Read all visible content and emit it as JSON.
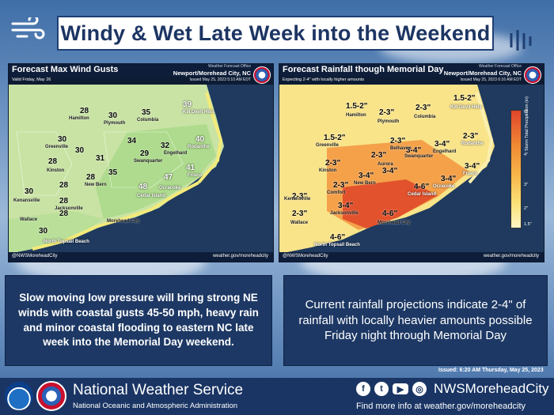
{
  "page": {
    "title": "Windy & Wet Late Week into the Weekend",
    "issued": "Issued: 6:20 AM Thursday, May 25, 2023"
  },
  "left_panel": {
    "title": "Forecast Max Wind Gusts",
    "office_small": "Weather Forecast Office",
    "office": "Newport/Morehead City, NC",
    "subtitle": "Valid Friday, May 26",
    "issued": "Issued May 25, 2023 5:10 AM EDT",
    "handle": "@NWSMoreheadCity",
    "site": "weather.gov/moreheadcity",
    "values": [
      "28",
      "30",
      "35",
      "39",
      "30",
      "34",
      "40",
      "31",
      "29",
      "32",
      "30",
      "28",
      "28",
      "35",
      "41",
      "28",
      "48",
      "47",
      "30",
      "28",
      "28",
      "30"
    ],
    "towns": [
      "Hamilton",
      "Plymouth",
      "Columbia",
      "Kill Devil Hills",
      "Greenville",
      "Rodanthe",
      "Swanquarter",
      "Engelhard",
      "Kinston",
      "New Bern",
      "Frisco",
      "Ocracoke",
      "Kenansville",
      "Cedar Island",
      "Jacksonville",
      "Wallace",
      "Morehead City",
      "North Topsail Beach"
    ],
    "colors": {
      "land_low": "#c9e3a4",
      "land_mid": "#aedb8d",
      "coast": "#f3ea7a",
      "water": "#1f3a5e"
    }
  },
  "right_panel": {
    "title": "Forecast Rainfall though Memorial Day",
    "office_small": "Weather Forecast Office",
    "office": "Newport/Morehead City, NC",
    "subtitle": "Expecting 2-4\" with locally higher amounts",
    "issued": "Issued May 25, 2023 6:16 AM EDT",
    "handle": "@NWSMoreheadCity",
    "site": "weather.gov/moreheadcity",
    "values": [
      "1.5-2\"",
      "1.5-2\"",
      "2-3\"",
      "2-3\"",
      "2-3\"",
      "1.5-2\"",
      "3-4\"",
      "2-3\"",
      "2-3\"",
      "3-4\"",
      "2-3\"",
      "3-4\"",
      "3-4\"",
      "2-3\"",
      "3-4\"",
      "4-6\"",
      "3-4\"",
      "2-3\"",
      "3-4\"",
      "4-6\"",
      "4-6\"",
      "2-3\""
    ],
    "towns": [
      "Hamilton",
      "Plymouth",
      "Columbia",
      "Kill Devil Hills",
      "Greenville",
      "Belhaven",
      "Rodanthe",
      "Swanquarter",
      "Engelhard",
      "Aurora",
      "Kinston",
      "New Bern",
      "Frisco",
      "Ocracoke",
      "Kenansville",
      "Comfort",
      "Cedar Island",
      "Jacksonville",
      "Wallace",
      "Morehead City",
      "North Topsail Beach"
    ],
    "legend": {
      "title": "Storm Total Precipitation (in)",
      "ticks": [
        "6\"",
        "4\"",
        "3\"",
        "2\"",
        "1.5\""
      ]
    },
    "colors": {
      "low": "#f9e48a",
      "mid": "#f4a14a",
      "high": "#e2522c",
      "water": "#1f3a5e"
    }
  },
  "left_text": "Slow moving low pressure will bring strong NE winds with coastal gusts 45-50 mph, heavy rain and minor coastal flooding to eastern NC late week into the Memorial Day weekend.",
  "right_text": "Current rainfall projections indicate 2-4\" of rainfall with locally heavier amounts possible Friday night through Memorial Day",
  "footer": {
    "org": "National Weather Service",
    "org_sub": "National Oceanic and Atmospheric Administration",
    "social_handle": "NWSMoreheadCity",
    "more_info": "Find more info at weather.gov/moreheadcity",
    "social_icons": [
      "facebook-icon",
      "twitter-icon",
      "youtube-icon",
      "instagram-icon"
    ]
  }
}
